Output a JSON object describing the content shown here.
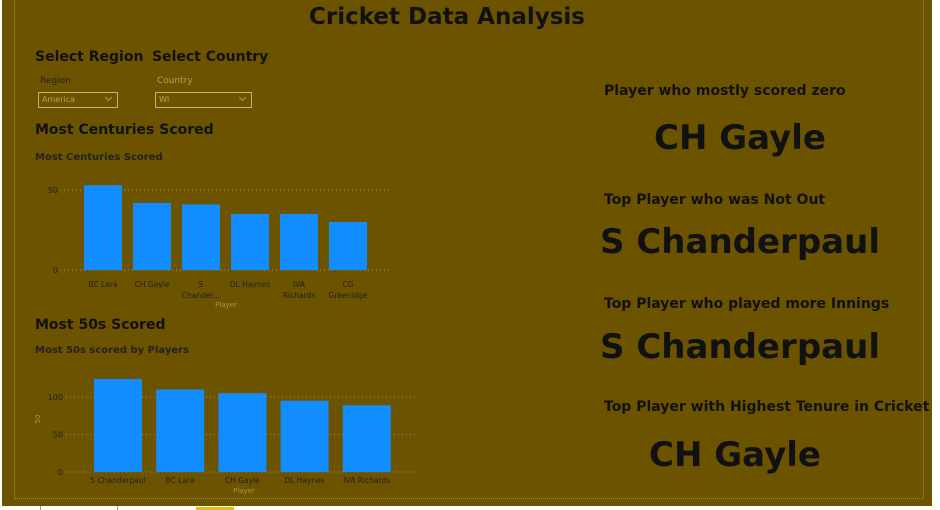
{
  "report": {
    "title": "Cricket Data Analysis"
  },
  "filters": {
    "region": {
      "heading": "Select Region",
      "label": "Region",
      "value": "America"
    },
    "country": {
      "heading": "Select Country",
      "label": "Country",
      "value": "WI"
    }
  },
  "centuries": {
    "section_title": "Most Centuries Scored",
    "chart_title": "Most Centuries Scored"
  },
  "fifties": {
    "section_title": "Most 50s Scored",
    "chart_title": "Most 50s scored by Players"
  },
  "cards": [
    {
      "heading": "Player who mostly scored zero",
      "value": "CH Gayle"
    },
    {
      "heading": "Top Player who was Not Out",
      "value": "S Chanderpaul"
    },
    {
      "heading": "Top Player who played more Innings",
      "value": "S Chanderpaul"
    },
    {
      "heading": "Top Player with Highest Tenure in Cricket",
      "value": "CH Gayle"
    }
  ],
  "colors": {
    "background": "#6b5300",
    "bar": "#118dff",
    "text": "#111111"
  },
  "chart_data": [
    {
      "type": "bar",
      "title": "Most Centuries Scored",
      "xlabel": "Player",
      "ylabel": "",
      "categories": [
        [
          "BC Lara"
        ],
        [
          "CH Gayle"
        ],
        [
          "S",
          "Chander..."
        ],
        [
          "DL Haynes"
        ],
        [
          "IVA",
          "Richards"
        ],
        [
          "CG",
          "Greenidge"
        ]
      ],
      "values": [
        53,
        42,
        41,
        35,
        35,
        30
      ],
      "yticks": [
        0,
        50
      ],
      "ylim": [
        0,
        55
      ],
      "grid": true
    },
    {
      "type": "bar",
      "title": "Most 50s scored by Players",
      "xlabel": "Player",
      "ylabel": "50",
      "categories": [
        [
          "S Chanderpaul"
        ],
        [
          "BC Lara"
        ],
        [
          "CH Gayle"
        ],
        [
          "DL Haynes"
        ],
        [
          "IVA Richards"
        ]
      ],
      "values": [
        124,
        110,
        105,
        95,
        89
      ],
      "yticks": [
        0,
        50,
        100
      ],
      "ylim": [
        0,
        130
      ],
      "grid": true
    }
  ]
}
